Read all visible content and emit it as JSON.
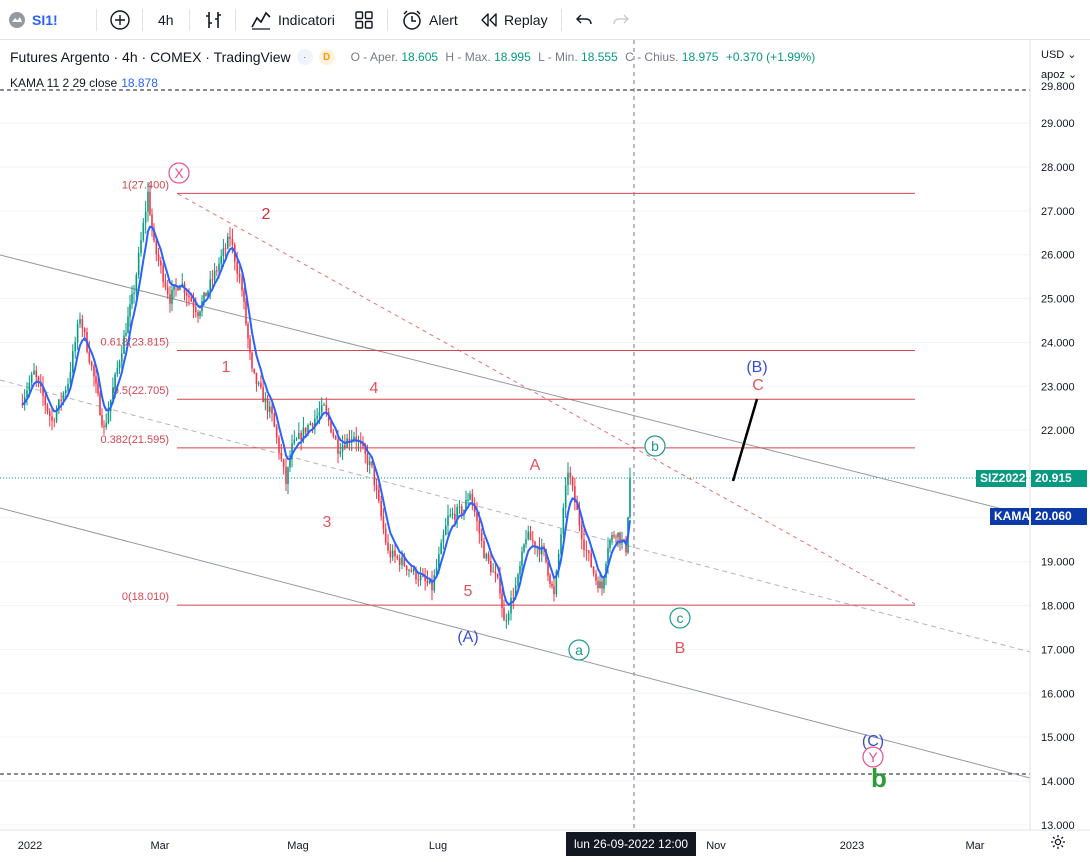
{
  "toolbar": {
    "symbol": "SI1!",
    "interval": "4h",
    "indicators_label": "Indicatori",
    "alert_label": "Alert",
    "replay_label": "Replay",
    "icons": [
      "symbol-search-icon",
      "add-symbol-icon",
      "bar-style-icon",
      "indicators-icon",
      "templates-icon",
      "alert-icon",
      "replay-icon",
      "undo-icon",
      "redo-icon"
    ]
  },
  "legend": {
    "title": "Futures Argento · 4h · COMEX · TradingView",
    "badge_d": "D",
    "ohlc": {
      "o_label": "O - Aper.",
      "o": "18.605",
      "h_label": "H - Max.",
      "h": "18.995",
      "l_label": "L - Min.",
      "l": "18.555",
      "c_label": "C - Chius.",
      "c": "18.975",
      "change": "+0.370 (+1.99%)"
    },
    "indicator": "KAMA 11 2 29 close",
    "indicator_value": "18.878"
  },
  "axis": {
    "currency": "USD",
    "mode": "apoz",
    "price_ticks": [
      "13.000",
      "14.000",
      "15.000",
      "16.000",
      "17.000",
      "18.000",
      "19.000",
      "20.000",
      "21.000",
      "22.000",
      "23.000",
      "24.000",
      "25.000",
      "26.000",
      "27.000",
      "28.000",
      "29.000",
      "29.800"
    ],
    "price_min": 13.0,
    "price_max": 29.8,
    "time_labels": [
      "2022",
      "Mar",
      "Mag",
      "Lug",
      "Nov",
      "2023",
      "Mar"
    ],
    "crosshair_time": "lun 26-09-2022   12:00"
  },
  "price_labels": {
    "symbol": {
      "name": "SIZ2022",
      "value": "20.915",
      "color": "#089981"
    },
    "kama": {
      "name": "KAMA",
      "value": "20.060",
      "color": "#0b3aa8"
    }
  },
  "fibonacci": [
    {
      "label": "1(27.400)",
      "price": 27.4
    },
    {
      "label": "0.618(23.815)",
      "price": 23.815
    },
    {
      "label": "0.5(22.705)",
      "price": 22.705
    },
    {
      "label": "0.382(21.595)",
      "price": 21.595
    },
    {
      "label": "0(18.010)",
      "price": 18.01
    }
  ],
  "wave_labels": [
    {
      "text": "X",
      "style": "circle",
      "color": "#e84f8f"
    },
    {
      "text": "2",
      "style": "plain",
      "color": "#d32f3f"
    },
    {
      "text": "1",
      "style": "plain",
      "color": "#e3545e"
    },
    {
      "text": "4",
      "style": "plain",
      "color": "#e3545e"
    },
    {
      "text": "3",
      "style": "plain",
      "color": "#e3545e"
    },
    {
      "text": "5",
      "style": "plain",
      "color": "#e3545e"
    },
    {
      "text": "(A)",
      "style": "plain",
      "color": "#3a4fd0"
    },
    {
      "text": "A",
      "style": "plain",
      "color": "#e3545e"
    },
    {
      "text": "a",
      "style": "circle",
      "color": "#1a9a8a"
    },
    {
      "text": "b",
      "style": "circle",
      "color": "#1a9a8a"
    },
    {
      "text": "c",
      "style": "circle",
      "color": "#1a9a8a"
    },
    {
      "text": "B",
      "style": "plain",
      "color": "#e3545e"
    },
    {
      "text": "(B)",
      "style": "plain",
      "color": "#3a4fd0"
    },
    {
      "text": "C",
      "style": "plain",
      "color": "#e3545e"
    },
    {
      "text": "(C)",
      "style": "plain",
      "color": "#3a4fd0"
    },
    {
      "text": "Y",
      "style": "circle",
      "color": "#e84f8f"
    },
    {
      "text": "b",
      "style": "bold",
      "color": "#2e9a3a"
    }
  ],
  "colors": {
    "up": "#089981",
    "down": "#f23645",
    "kama": "#2962ff",
    "fib": "#e57373"
  },
  "chart_data": {
    "type": "candlestick",
    "ylim": [
      13.0,
      29.8
    ],
    "price_path_anchors": [
      {
        "t": "2022-01-03",
        "price": 22.6
      },
      {
        "t": "2022-01-10",
        "price": 23.3
      },
      {
        "t": "2022-01-19",
        "price": 22.2
      },
      {
        "t": "2022-01-27",
        "price": 23.1
      },
      {
        "t": "2022-02-02",
        "price": 24.6
      },
      {
        "t": "2022-02-09",
        "price": 23.2
      },
      {
        "t": "2022-02-14",
        "price": 22.0
      },
      {
        "t": "2022-02-24",
        "price": 24.1
      },
      {
        "t": "2022-03-01",
        "price": 25.2
      },
      {
        "t": "2022-03-08",
        "price": 27.4
      },
      {
        "t": "2022-03-11",
        "price": 26.2
      },
      {
        "t": "2022-03-19",
        "price": 25.0
      },
      {
        "t": "2022-03-24",
        "price": 25.4
      },
      {
        "t": "2022-04-02",
        "price": 24.7
      },
      {
        "t": "2022-04-07",
        "price": 25.2
      },
      {
        "t": "2022-04-18",
        "price": 26.4
      },
      {
        "t": "2022-04-24",
        "price": 25.2
      },
      {
        "t": "2022-04-29",
        "price": 23.3
      },
      {
        "t": "2022-05-09",
        "price": 22.3
      },
      {
        "t": "2022-05-16",
        "price": 20.8
      },
      {
        "t": "2022-05-19",
        "price": 21.6
      },
      {
        "t": "2022-05-27",
        "price": 22.1
      },
      {
        "t": "2022-06-04",
        "price": 22.5
      },
      {
        "t": "2022-06-11",
        "price": 21.6
      },
      {
        "t": "2022-06-19",
        "price": 21.9
      },
      {
        "t": "2022-06-28",
        "price": 21.1
      },
      {
        "t": "2022-07-06",
        "price": 19.2
      },
      {
        "t": "2022-07-13",
        "price": 19.0
      },
      {
        "t": "2022-07-20",
        "price": 18.7
      },
      {
        "t": "2022-07-28",
        "price": 18.4
      },
      {
        "t": "2022-08-05",
        "price": 20.0
      },
      {
        "t": "2022-08-13",
        "price": 20.2
      },
      {
        "t": "2022-08-16",
        "price": 20.6
      },
      {
        "t": "2022-08-23",
        "price": 19.2
      },
      {
        "t": "2022-08-31",
        "price": 18.4
      },
      {
        "t": "2022-09-02",
        "price": 17.6
      },
      {
        "t": "2022-09-09",
        "price": 18.6
      },
      {
        "t": "2022-09-13",
        "price": 19.6
      },
      {
        "t": "2022-09-22",
        "price": 19.2
      },
      {
        "t": "2022-09-27",
        "price": 18.2
      },
      {
        "t": "2022-10-04",
        "price": 21.1
      },
      {
        "t": "2022-10-12",
        "price": 19.4
      },
      {
        "t": "2022-10-18",
        "price": 18.6
      },
      {
        "t": "2022-10-21",
        "price": 18.4
      },
      {
        "t": "2022-10-24",
        "price": 19.4
      },
      {
        "t": "2022-10-28",
        "price": 19.7
      },
      {
        "t": "2022-11-02",
        "price": 19.3
      },
      {
        "t": "2022-11-04",
        "price": 20.9
      }
    ],
    "projection": [
      {
        "t": "2022-11-04",
        "price": 20.9
      },
      {
        "t": "2022-11-14",
        "price": 22.7
      }
    ]
  }
}
